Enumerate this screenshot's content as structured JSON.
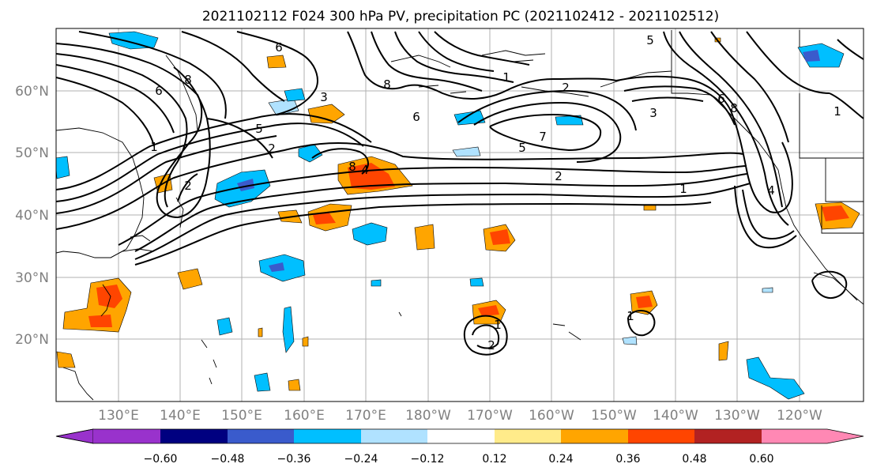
{
  "title": "2021102112 F024 300 hPa PV, precipitation PC (2021102412 - 2021102512)",
  "map": {
    "lat_ticks": [
      "20°N",
      "30°N",
      "40°N",
      "50°N",
      "60°N"
    ],
    "lon_ticks": [
      "130°E",
      "140°E",
      "150°E",
      "160°E",
      "170°E",
      "180°W",
      "170°W",
      "160°W",
      "150°W",
      "140°W",
      "130°W",
      "120°W"
    ],
    "contour_labels": [
      "6",
      "6",
      "8",
      "1",
      "2",
      "5",
      "8",
      "1",
      "2",
      "3",
      "6",
      "7",
      "5",
      "2",
      "1",
      "3",
      "6",
      "8",
      "5",
      "1",
      "2",
      "4",
      "8",
      "4",
      "1",
      "1",
      "2"
    ]
  },
  "colorbar": {
    "tick_labels": [
      "−0.60",
      "−0.48",
      "−0.36",
      "−0.24",
      "−0.12",
      "0.12",
      "0.24",
      "0.36",
      "0.48",
      "0.60"
    ],
    "colors": [
      "#9932cc",
      "#000080",
      "#3a5bcc",
      "#00bfff",
      "#b0e2ff",
      "#ffffff",
      "#ffeb8a",
      "#ffa500",
      "#ff4500",
      "#b22222",
      "#ff88b4"
    ]
  }
}
